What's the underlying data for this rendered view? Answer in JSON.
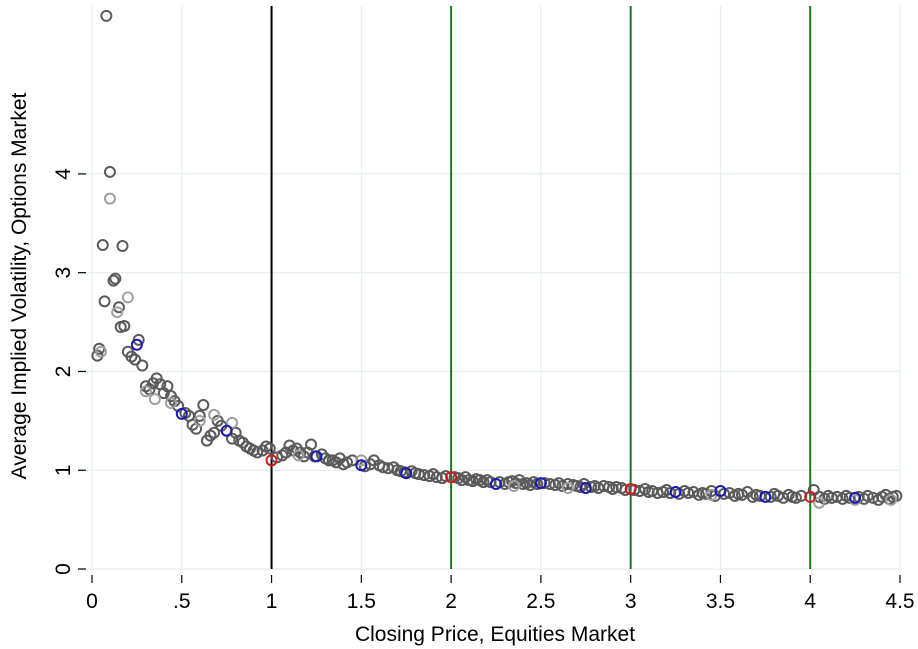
{
  "chart_data": {
    "type": "scatter",
    "title": "",
    "xlabel": "Closing Price, Equities Market",
    "ylabel": "Average Implied Volatility, Options Market",
    "xlim": [
      0,
      4.5
    ],
    "ylim": [
      0,
      5.7
    ],
    "x_ticks": [
      0,
      0.5,
      1,
      1.5,
      2,
      2.5,
      3,
      3.5,
      4,
      4.5
    ],
    "x_tick_labels": [
      "0",
      ".5",
      "1",
      "1.5",
      "2",
      "2.5",
      "3",
      "3.5",
      "4",
      "4.5"
    ],
    "y_ticks": [
      0,
      1,
      2,
      3,
      4
    ],
    "y_tick_labels": [
      "0",
      "1",
      "2",
      "3",
      "4"
    ],
    "grid": true,
    "legend": "none",
    "reference_lines": [
      {
        "x": 1,
        "color": "#000000"
      },
      {
        "x": 2,
        "color": "#1a7a1a"
      },
      {
        "x": 3,
        "color": "#1a7a1a"
      },
      {
        "x": 4,
        "color": "#1a7a1a"
      }
    ],
    "series": [
      {
        "color": "#5a5a5a",
        "points": [
          [
            0.03,
            2.16
          ],
          [
            0.04,
            2.23
          ],
          [
            0.06,
            3.28
          ],
          [
            0.07,
            2.71
          ],
          [
            0.08,
            5.6
          ],
          [
            0.1,
            4.02
          ],
          [
            0.12,
            2.92
          ],
          [
            0.13,
            2.94
          ],
          [
            0.15,
            2.65
          ],
          [
            0.16,
            2.45
          ],
          [
            0.17,
            3.27
          ],
          [
            0.18,
            2.46
          ],
          [
            0.2,
            2.2
          ],
          [
            0.22,
            2.15
          ],
          [
            0.24,
            2.12
          ],
          [
            0.26,
            2.32
          ],
          [
            0.28,
            2.06
          ],
          [
            0.3,
            1.85
          ],
          [
            0.32,
            1.82
          ],
          [
            0.34,
            1.88
          ],
          [
            0.36,
            1.93
          ],
          [
            0.38,
            1.87
          ],
          [
            0.4,
            1.78
          ],
          [
            0.42,
            1.85
          ],
          [
            0.44,
            1.75
          ],
          [
            0.46,
            1.7
          ],
          [
            0.48,
            1.65
          ],
          [
            0.52,
            1.58
          ],
          [
            0.54,
            1.55
          ],
          [
            0.56,
            1.46
          ],
          [
            0.58,
            1.42
          ],
          [
            0.6,
            1.55
          ],
          [
            0.62,
            1.66
          ],
          [
            0.64,
            1.3
          ],
          [
            0.66,
            1.35
          ],
          [
            0.68,
            1.38
          ],
          [
            0.7,
            1.5
          ],
          [
            0.72,
            1.45
          ],
          [
            0.78,
            1.32
          ],
          [
            0.8,
            1.38
          ],
          [
            0.82,
            1.3
          ],
          [
            0.84,
            1.28
          ],
          [
            0.86,
            1.24
          ],
          [
            0.88,
            1.22
          ],
          [
            0.9,
            1.2
          ],
          [
            0.92,
            1.18
          ],
          [
            0.95,
            1.2
          ],
          [
            0.97,
            1.24
          ],
          [
            0.99,
            1.22
          ],
          [
            1.03,
            1.13
          ],
          [
            1.06,
            1.15
          ],
          [
            1.08,
            1.18
          ],
          [
            1.1,
            1.25
          ],
          [
            1.12,
            1.2
          ],
          [
            1.14,
            1.22
          ],
          [
            1.16,
            1.18
          ],
          [
            1.18,
            1.14
          ],
          [
            1.2,
            1.18
          ],
          [
            1.22,
            1.26
          ],
          [
            1.24,
            1.14
          ],
          [
            1.28,
            1.16
          ],
          [
            1.3,
            1.12
          ],
          [
            1.32,
            1.1
          ],
          [
            1.34,
            1.1
          ],
          [
            1.36,
            1.08
          ],
          [
            1.38,
            1.12
          ],
          [
            1.4,
            1.06
          ],
          [
            1.42,
            1.08
          ],
          [
            1.45,
            1.1
          ],
          [
            1.52,
            1.04
          ],
          [
            1.55,
            1.06
          ],
          [
            1.57,
            1.1
          ],
          [
            1.6,
            1.05
          ],
          [
            1.62,
            1.03
          ],
          [
            1.65,
            1.02
          ],
          [
            1.68,
            1.03
          ],
          [
            1.7,
            1.0
          ],
          [
            1.72,
            0.99
          ],
          [
            1.74,
            0.98
          ],
          [
            1.78,
            0.99
          ],
          [
            1.8,
            0.97
          ],
          [
            1.82,
            0.96
          ],
          [
            1.85,
            0.95
          ],
          [
            1.88,
            0.94
          ],
          [
            1.9,
            0.96
          ],
          [
            1.92,
            0.93
          ],
          [
            1.95,
            0.92
          ],
          [
            1.97,
            0.94
          ],
          [
            2.02,
            0.93
          ],
          [
            2.04,
            0.92
          ],
          [
            2.06,
            0.9
          ],
          [
            2.08,
            0.93
          ],
          [
            2.1,
            0.9
          ],
          [
            2.12,
            0.89
          ],
          [
            2.14,
            0.91
          ],
          [
            2.16,
            0.9
          ],
          [
            2.18,
            0.88
          ],
          [
            2.2,
            0.9
          ],
          [
            2.22,
            0.88
          ],
          [
            2.27,
            0.88
          ],
          [
            2.3,
            0.86
          ],
          [
            2.32,
            0.88
          ],
          [
            2.34,
            0.89
          ],
          [
            2.36,
            0.87
          ],
          [
            2.38,
            0.9
          ],
          [
            2.4,
            0.86
          ],
          [
            2.42,
            0.87
          ],
          [
            2.44,
            0.85
          ],
          [
            2.46,
            0.88
          ],
          [
            2.48,
            0.86
          ],
          [
            2.52,
            0.87
          ],
          [
            2.55,
            0.86
          ],
          [
            2.58,
            0.85
          ],
          [
            2.6,
            0.87
          ],
          [
            2.62,
            0.84
          ],
          [
            2.65,
            0.86
          ],
          [
            2.68,
            0.85
          ],
          [
            2.7,
            0.84
          ],
          [
            2.72,
            0.83
          ],
          [
            2.74,
            0.86
          ],
          [
            2.78,
            0.83
          ],
          [
            2.8,
            0.84
          ],
          [
            2.82,
            0.82
          ],
          [
            2.85,
            0.84
          ],
          [
            2.88,
            0.83
          ],
          [
            2.9,
            0.81
          ],
          [
            2.92,
            0.83
          ],
          [
            2.95,
            0.82
          ],
          [
            2.97,
            0.8
          ],
          [
            3.02,
            0.8
          ],
          [
            3.05,
            0.79
          ],
          [
            3.08,
            0.81
          ],
          [
            3.1,
            0.78
          ],
          [
            3.12,
            0.79
          ],
          [
            3.15,
            0.77
          ],
          [
            3.18,
            0.78
          ],
          [
            3.2,
            0.8
          ],
          [
            3.22,
            0.77
          ],
          [
            3.27,
            0.76
          ],
          [
            3.3,
            0.79
          ],
          [
            3.32,
            0.77
          ],
          [
            3.35,
            0.78
          ],
          [
            3.38,
            0.75
          ],
          [
            3.4,
            0.77
          ],
          [
            3.42,
            0.76
          ],
          [
            3.45,
            0.79
          ],
          [
            3.47,
            0.74
          ],
          [
            3.52,
            0.76
          ],
          [
            3.55,
            0.77
          ],
          [
            3.58,
            0.74
          ],
          [
            3.6,
            0.76
          ],
          [
            3.62,
            0.75
          ],
          [
            3.65,
            0.78
          ],
          [
            3.68,
            0.73
          ],
          [
            3.7,
            0.75
          ],
          [
            3.72,
            0.74
          ],
          [
            3.78,
            0.73
          ],
          [
            3.8,
            0.76
          ],
          [
            3.82,
            0.74
          ],
          [
            3.85,
            0.72
          ],
          [
            3.88,
            0.75
          ],
          [
            3.9,
            0.73
          ],
          [
            3.92,
            0.72
          ],
          [
            3.95,
            0.74
          ],
          [
            4.02,
            0.8
          ],
          [
            4.05,
            0.73
          ],
          [
            4.08,
            0.71
          ],
          [
            4.1,
            0.74
          ],
          [
            4.12,
            0.72
          ],
          [
            4.15,
            0.73
          ],
          [
            4.18,
            0.71
          ],
          [
            4.2,
            0.74
          ],
          [
            4.22,
            0.72
          ],
          [
            4.27,
            0.73
          ],
          [
            4.3,
            0.71
          ],
          [
            4.32,
            0.74
          ],
          [
            4.35,
            0.72
          ],
          [
            4.38,
            0.7
          ],
          [
            4.4,
            0.73
          ],
          [
            4.42,
            0.75
          ],
          [
            4.44,
            0.71
          ],
          [
            4.46,
            0.73
          ],
          [
            4.48,
            0.74
          ]
        ]
      },
      {
        "color": "#a0a0a0",
        "points": [
          [
            0.05,
            2.2
          ],
          [
            0.1,
            3.75
          ],
          [
            0.14,
            2.6
          ],
          [
            0.2,
            2.75
          ],
          [
            0.3,
            1.8
          ],
          [
            0.35,
            1.72
          ],
          [
            0.44,
            1.68
          ],
          [
            0.6,
            1.5
          ],
          [
            0.68,
            1.56
          ],
          [
            0.78,
            1.48
          ],
          [
            1.15,
            1.15
          ],
          [
            1.5,
            1.1
          ],
          [
            2.35,
            0.84
          ],
          [
            2.65,
            0.82
          ],
          [
            3.45,
            0.75
          ],
          [
            4.05,
            0.67
          ],
          [
            4.25,
            0.7
          ],
          [
            4.45,
            0.7
          ]
        ]
      },
      {
        "color": "#1a1ab4",
        "points": [
          [
            0.25,
            2.27
          ],
          [
            0.5,
            1.57
          ],
          [
            0.75,
            1.4
          ],
          [
            1.25,
            1.14
          ],
          [
            1.5,
            1.05
          ],
          [
            1.75,
            0.97
          ],
          [
            2.25,
            0.86
          ],
          [
            2.5,
            0.87
          ],
          [
            2.75,
            0.82
          ],
          [
            3.25,
            0.78
          ],
          [
            3.5,
            0.79
          ],
          [
            3.75,
            0.73
          ],
          [
            4.25,
            0.72
          ]
        ]
      },
      {
        "color": "#c81e1e",
        "points": [
          [
            1.0,
            1.1
          ],
          [
            2.0,
            0.93
          ],
          [
            3.0,
            0.81
          ],
          [
            4.0,
            0.73
          ]
        ]
      }
    ]
  }
}
